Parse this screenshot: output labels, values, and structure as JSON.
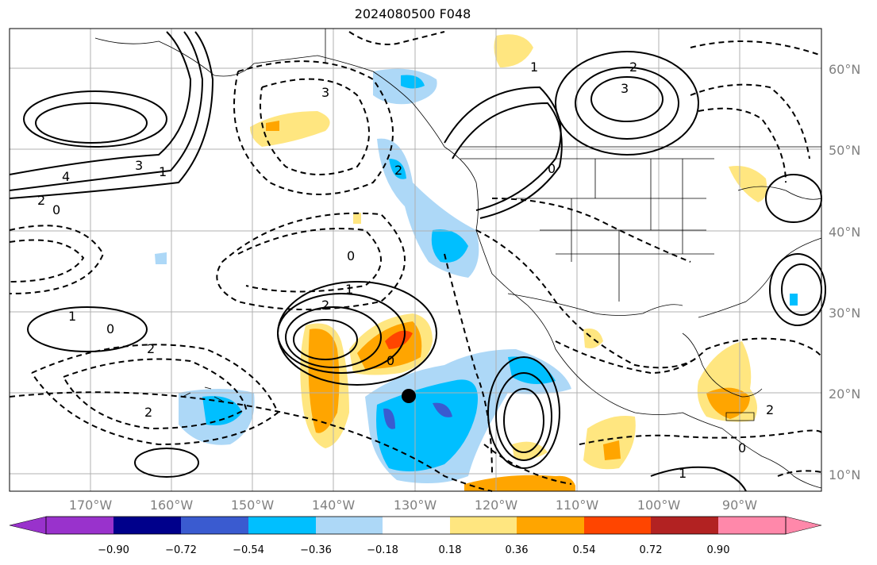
{
  "title": "2024080500 F048",
  "lat_labels": [
    "60°N",
    "50°N",
    "40°N",
    "30°N",
    "20°N",
    "10°N"
  ],
  "lon_labels": [
    "170°W",
    "160°W",
    "150°W",
    "140°W",
    "130°W",
    "120°W",
    "110°W",
    "100°W",
    "90°W"
  ],
  "colorbar": {
    "ticks": [
      "−0.90",
      "−0.72",
      "−0.54",
      "−0.36",
      "−0.18",
      "0.18",
      "0.36",
      "0.54",
      "0.72",
      "0.90"
    ],
    "colors": [
      "#9932cc",
      "#00008b",
      "#3a5bd0",
      "#00bfff",
      "#add8f7",
      "#ffffff",
      "#ffe680",
      "#ffa500",
      "#ff4500",
      "#b22222",
      "#ff88aa"
    ]
  },
  "contour_labels": [
    "4",
    "3",
    "2",
    "1",
    "0",
    "1",
    "2",
    "0",
    "2",
    "1",
    "0",
    "3",
    "2",
    "0",
    "1",
    "3",
    "2",
    "0",
    "2",
    "1",
    "0",
    "2"
  ],
  "marker": "storm-center-dot"
}
